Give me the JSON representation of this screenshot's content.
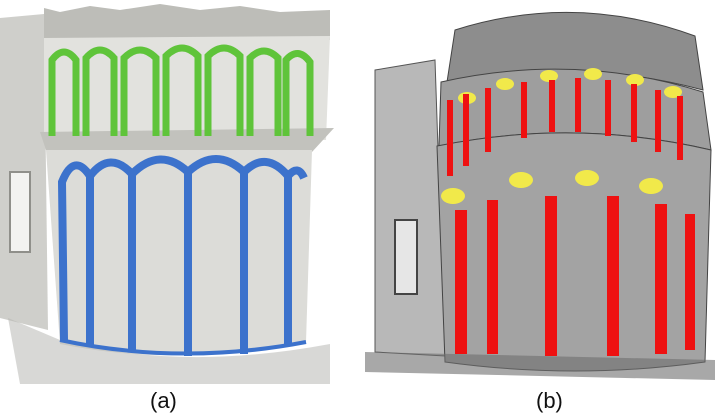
{
  "panels": [
    {
      "id": "a",
      "caption": "(a)",
      "colors": {
        "upper_columns": "#5fc43a",
        "lower_columns": "#3c72cc",
        "wall": "#d9d9d5"
      }
    },
    {
      "id": "b",
      "caption": "(b)",
      "colors": {
        "columns": "#ee1111",
        "capitals": "#f1e94a",
        "wall": "#9a9a9a"
      }
    }
  ]
}
